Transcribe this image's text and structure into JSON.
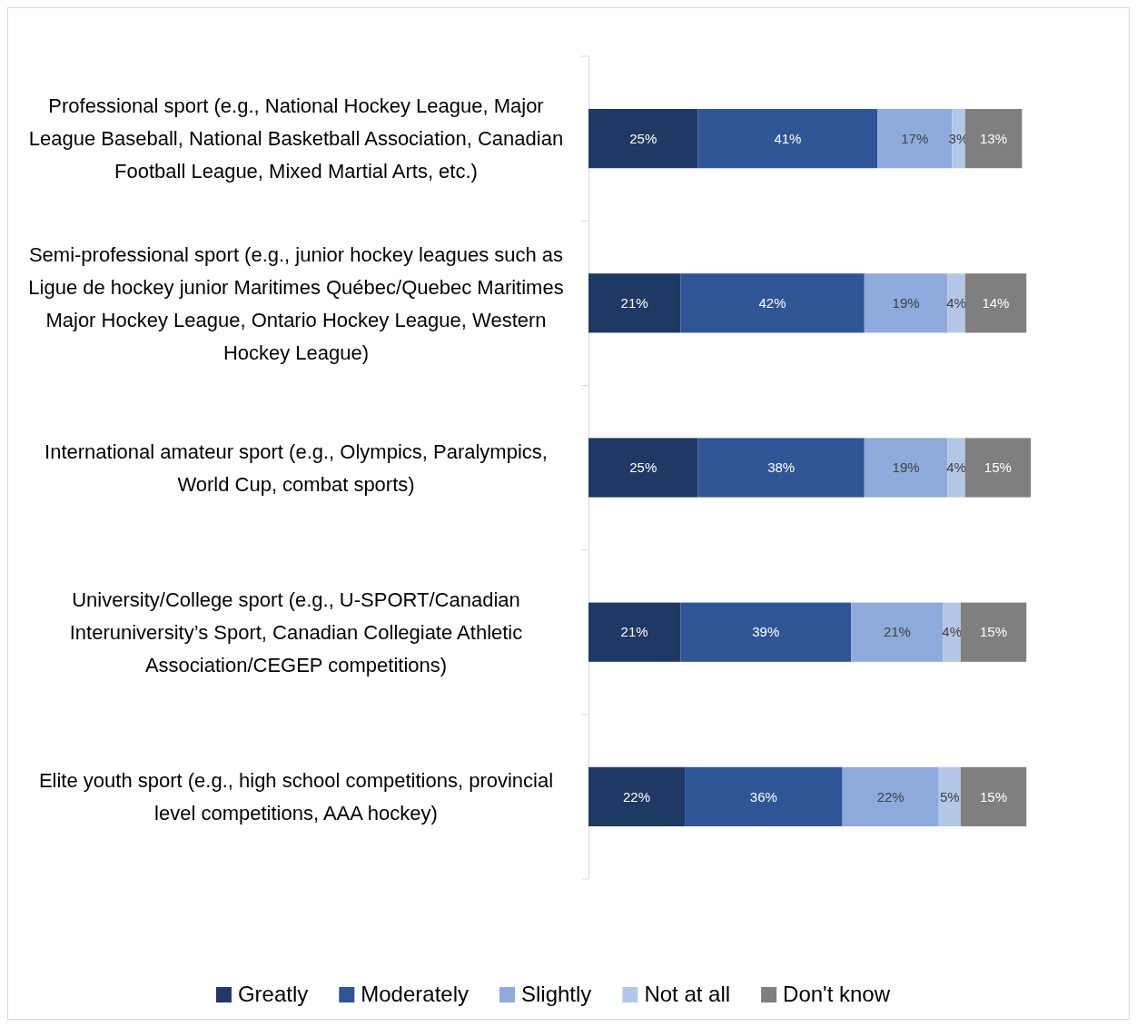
{
  "chart_data": {
    "type": "bar",
    "orientation": "horizontal",
    "stacked": true,
    "legend": "bottom",
    "categories": [
      "Professional sport (e.g., National Hockey League, Major League Baseball, National Basketball Association, Canadian Football League, Mixed Martial Arts, etc.)",
      "Semi-professional sport (e.g., junior hockey leagues such as Ligue de hockey junior Maritimes Québec/Quebec Maritimes Major Hockey League, Ontario Hockey League, Western Hockey League)",
      "International amateur sport (e.g., Olympics, Paralympics, World Cup, combat sports)",
      "University/College sport (e.g., U-SPORT/Canadian Interuniversity’s Sport, Canadian Collegiate Athletic Association/CEGEP competitions)",
      "Elite youth sport (e.g., high school competitions, provincial level competitions, AAA hockey)"
    ],
    "series": [
      {
        "name": "Greatly",
        "color": "#1f3864",
        "values": [
          25,
          21,
          25,
          21,
          22
        ],
        "value_labels": [
          "25%",
          "21%",
          "25%",
          "21%",
          "22%"
        ]
      },
      {
        "name": "Moderately",
        "color": "#2f5597",
        "values": [
          41,
          42,
          38,
          39,
          36
        ],
        "value_labels": [
          "41%",
          "42%",
          "38%",
          "39%",
          "36%"
        ]
      },
      {
        "name": "Slightly",
        "color": "#8faadc",
        "values": [
          17,
          19,
          19,
          21,
          22
        ],
        "value_labels": [
          "17%",
          "19%",
          "19%",
          "21%",
          "22%"
        ]
      },
      {
        "name": "Not at all",
        "color": "#b4c7e7",
        "values": [
          3,
          4,
          4,
          4,
          5
        ],
        "value_labels": [
          "3%",
          "4%",
          "4%",
          "4%",
          "5%"
        ]
      },
      {
        "name": "Don't know",
        "color": "#7f7f7f",
        "values": [
          13,
          14,
          15,
          15,
          15
        ],
        "value_labels": [
          "13%",
          "14%",
          "15%",
          "15%",
          "15%"
        ]
      }
    ]
  }
}
